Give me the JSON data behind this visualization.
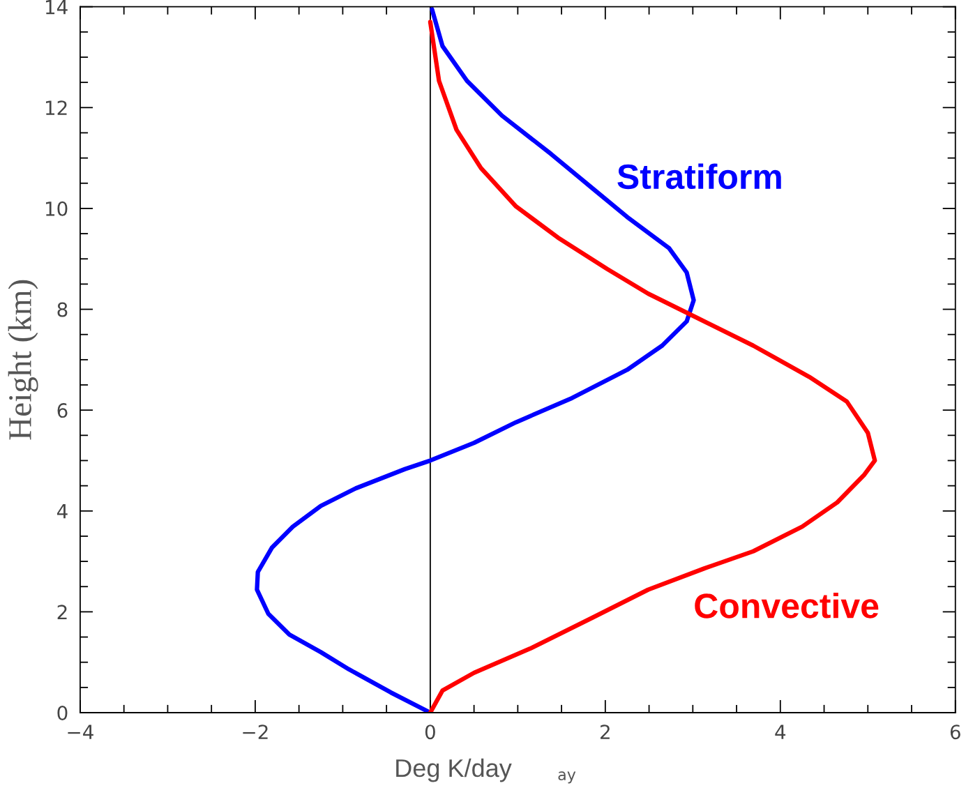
{
  "chart_data": {
    "type": "line",
    "xlabel": "Deg K/day",
    "ylabel": "Height (km)",
    "xlim": [
      -4,
      6
    ],
    "xticks": [
      -4,
      {
        "value": -3.5,
        "label": null
      },
      {
        "value": -3,
        "label": null
      },
      {
        "value": -2.5,
        "label": null
      },
      -2,
      {
        "value": -1.5,
        "label": null
      },
      {
        "value": -1,
        "label": null
      },
      {
        "value": -0.5,
        "label": null
      },
      0,
      {
        "value": 0.5,
        "label": null
      },
      {
        "value": 1,
        "label": null
      },
      {
        "value": 1.5,
        "label": null
      },
      2,
      {
        "value": 2.5,
        "label": null
      },
      {
        "value": 3,
        "label": null
      },
      {
        "value": 3.5,
        "label": null
      },
      4,
      {
        "value": 4.5,
        "label": null
      },
      {
        "value": 5,
        "label": null
      },
      {
        "value": 5.5,
        "label": null
      },
      6
    ],
    "ylim": [
      0,
      14
    ],
    "yticks": [
      0,
      {
        "value": 0.5,
        "label": null
      },
      {
        "value": 1,
        "label": null
      },
      {
        "value": 1.5,
        "label": null
      },
      2,
      {
        "value": 2.5,
        "label": null
      },
      {
        "value": 3,
        "label": null
      },
      {
        "value": 3.5,
        "label": null
      },
      4,
      {
        "value": 4.5,
        "label": null
      },
      {
        "value": 5,
        "label": null
      },
      {
        "value": 5.5,
        "label": null
      },
      6,
      {
        "value": 6.5,
        "label": null
      },
      {
        "value": 7,
        "label": null
      },
      {
        "value": 7.5,
        "label": null
      },
      8,
      {
        "value": 8.5,
        "label": null
      },
      {
        "value": 9,
        "label": null
      },
      {
        "value": 9.5,
        "label": null
      },
      10,
      {
        "value": 10.5,
        "label": null
      },
      {
        "value": 11,
        "label": null
      },
      {
        "value": 11.5,
        "label": null
      },
      12,
      {
        "value": 12.5,
        "label": null
      },
      {
        "value": 13,
        "label": null
      },
      {
        "value": 13.5,
        "label": null
      },
      14
    ],
    "grid": false,
    "legend": false,
    "marker": "none",
    "line_style": "solid",
    "ref_lines": [
      {
        "axis": "x",
        "value": 0,
        "color": "#000000"
      }
    ],
    "series": [
      {
        "color": "#0000ff",
        "x": [
          0,
          -0.45,
          -0.93,
          -1.25,
          -1.61,
          -1.85,
          -1.98,
          -1.97,
          -1.81,
          -1.57,
          -1.25,
          -0.85,
          -0.29,
          0,
          0.5,
          0.98,
          1.62,
          2.25,
          2.65,
          2.93,
          3.01,
          2.93,
          2.73,
          2.25,
          1.86,
          1.38,
          0.82,
          0.42,
          0.14,
          0.02
        ],
        "values": [
          0,
          0.4,
          0.86,
          1.2,
          1.55,
          1.96,
          2.44,
          2.79,
          3.27,
          3.69,
          4.1,
          4.45,
          4.83,
          5.0,
          5.35,
          5.76,
          6.24,
          6.8,
          7.28,
          7.76,
          8.18,
          8.73,
          9.21,
          9.83,
          10.39,
          11.08,
          11.84,
          12.53,
          13.22,
          13.95
        ]
      },
      {
        "color": "#ff0000",
        "x": [
          0,
          0.14,
          0.5,
          1.14,
          1.86,
          2.49,
          3.13,
          3.69,
          4.25,
          4.65,
          4.96,
          5.08,
          5.0,
          4.76,
          4.33,
          3.69,
          3.05,
          2.49,
          2.02,
          1.46,
          0.98,
          0.58,
          0.3,
          0.1,
          0
        ],
        "values": [
          0,
          0.44,
          0.79,
          1.27,
          1.89,
          2.44,
          2.86,
          3.2,
          3.69,
          4.17,
          4.72,
          5.0,
          5.55,
          6.17,
          6.66,
          7.28,
          7.83,
          8.31,
          8.8,
          9.42,
          10.04,
          10.8,
          11.56,
          12.53,
          13.7
        ]
      }
    ],
    "annotations": [
      "Stratiform",
      "Convective",
      "ay"
    ]
  }
}
